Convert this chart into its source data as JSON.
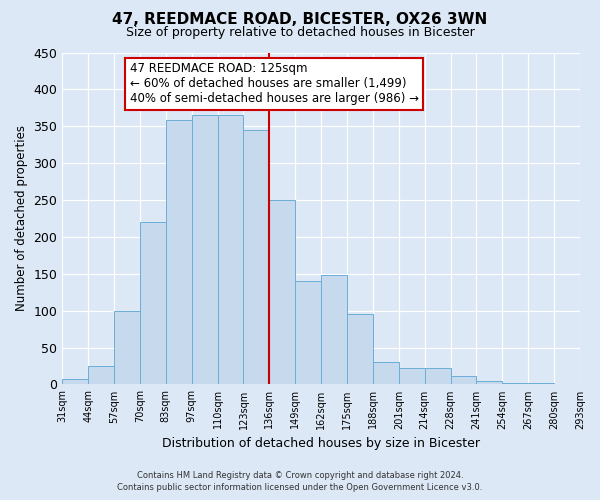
{
  "title": "47, REEDMACE ROAD, BICESTER, OX26 3WN",
  "subtitle": "Size of property relative to detached houses in Bicester",
  "xlabel": "Distribution of detached houses by size in Bicester",
  "ylabel": "Number of detached properties",
  "bar_labels": [
    "31sqm",
    "44sqm",
    "57sqm",
    "70sqm",
    "83sqm",
    "97sqm",
    "110sqm",
    "123sqm",
    "136sqm",
    "149sqm",
    "162sqm",
    "175sqm",
    "188sqm",
    "201sqm",
    "214sqm",
    "228sqm",
    "241sqm",
    "254sqm",
    "267sqm",
    "280sqm",
    "293sqm"
  ],
  "bar_values": [
    8,
    25,
    99,
    220,
    358,
    365,
    365,
    345,
    250,
    140,
    148,
    96,
    30,
    22,
    22,
    12,
    5,
    2,
    2,
    1
  ],
  "bar_color": "#c6d9ed",
  "bar_edge_color": "#6aaed6",
  "vline_color": "#cc0000",
  "vline_x_label_idx": 7,
  "annotation_title": "47 REEDMACE ROAD: 125sqm",
  "annotation_line1": "← 60% of detached houses are smaller (1,499)",
  "annotation_line2": "40% of semi-detached houses are larger (986) →",
  "annotation_box_color": "#ffffff",
  "annotation_box_edge": "#cc0000",
  "ylim": [
    0,
    450
  ],
  "yticks": [
    0,
    50,
    100,
    150,
    200,
    250,
    300,
    350,
    400,
    450
  ],
  "bg_color": "#dce8f5",
  "grid_color": "#c8d8e8",
  "footer1": "Contains HM Land Registry data © Crown copyright and database right 2024.",
  "footer2": "Contains public sector information licensed under the Open Government Licence v3.0."
}
